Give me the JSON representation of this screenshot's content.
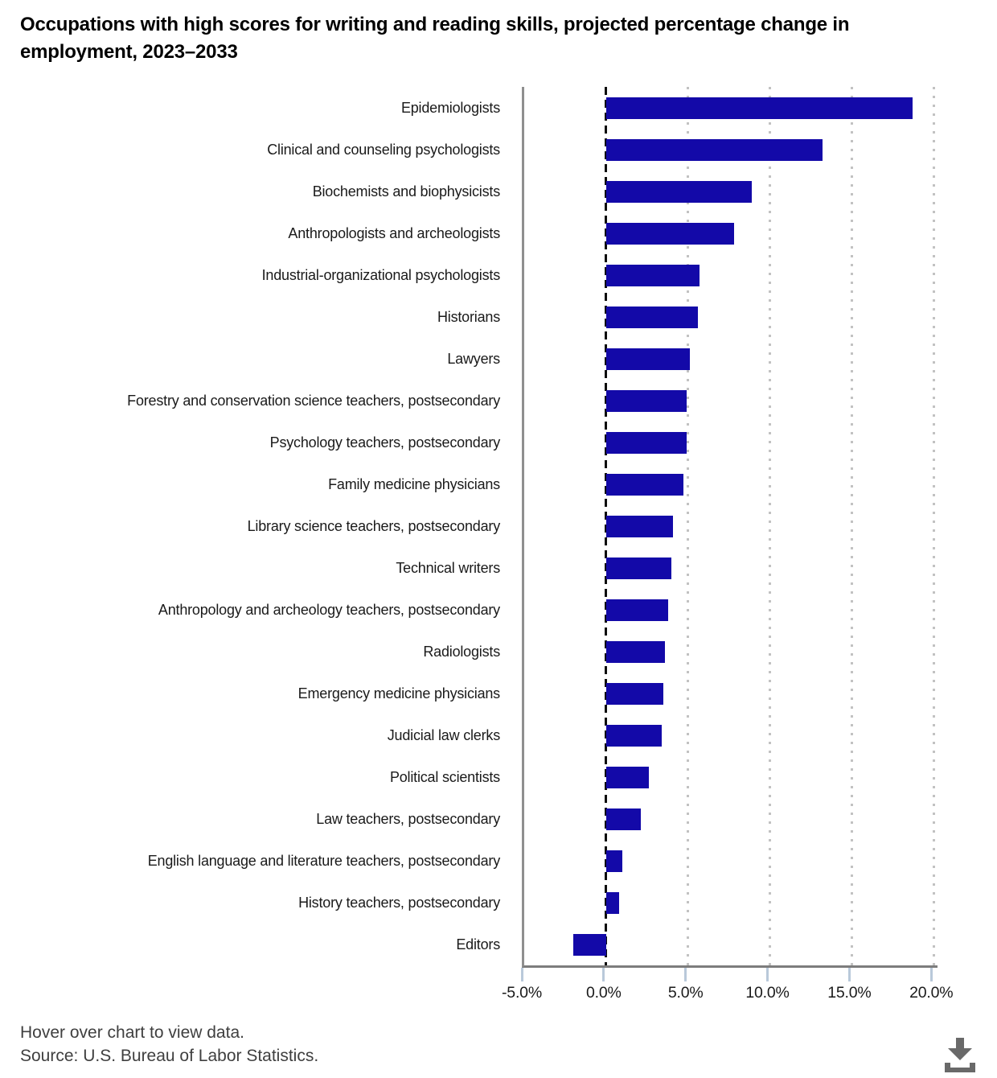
{
  "title": "Occupations with high scores for writing and reading skills, projected percentage change in employment, 2023–2033",
  "chart_data": {
    "type": "bar",
    "orientation": "horizontal",
    "title": "Occupations with high scores for writing and reading skills, projected percentage change in employment, 2023–2033",
    "categories": [
      "Epidemiologists",
      "Clinical and counseling psychologists",
      "Biochemists and biophysicists",
      "Anthropologists and archeologists",
      "Industrial-organizational psychologists",
      "Historians",
      "Lawyers",
      "Forestry and conservation science teachers, postsecondary",
      "Psychology teachers, postsecondary",
      "Family medicine physicians",
      "Library science teachers, postsecondary",
      "Technical writers",
      "Anthropology and archeology teachers, postsecondary",
      "Radiologists",
      "Emergency medicine physicians",
      "Judicial law clerks",
      "Political scientists",
      "Law teachers, postsecondary",
      "English language and literature teachers, postsecondary",
      "History teachers, postsecondary",
      "Editors"
    ],
    "values": [
      18.7,
      13.2,
      8.9,
      7.8,
      5.7,
      5.6,
      5.1,
      4.9,
      4.9,
      4.7,
      4.1,
      4.0,
      3.8,
      3.6,
      3.5,
      3.4,
      2.6,
      2.1,
      1.0,
      0.8,
      -2.0
    ],
    "unit": "%",
    "xlabel": "",
    "ylabel": "",
    "x_ticks": [
      -5,
      0,
      5,
      10,
      15,
      20
    ],
    "x_tick_labels": [
      "-5.0%",
      "0.0%",
      "5.0%",
      "10.0%",
      "15.0%",
      "20.0%"
    ],
    "xlim": [
      -5,
      20.25
    ],
    "grid": "vertical dotted gridlines at 5% intervals",
    "zero_line": "vertical black dashed line at 0.0%",
    "legend": "none",
    "bar_color": "#1309a8",
    "axis_line_color": "#7d7d7d",
    "tick_mark_color": "#b9c9da"
  },
  "footer": {
    "hover_note": "Hover over chart to view data.",
    "source": "Source: U.S. Bureau of Labor Statistics."
  },
  "download_button": {
    "icon": "download-icon",
    "color": "#696969"
  }
}
